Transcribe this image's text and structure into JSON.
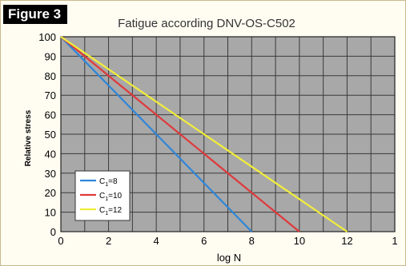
{
  "figure_label": "Figure 3",
  "chart_data": {
    "type": "line",
    "title": "Fatigue according DNV-OS-C502",
    "xlabel": "log N",
    "ylabel": "Relative stress",
    "xlim": [
      0,
      14
    ],
    "ylim": [
      0,
      100
    ],
    "xticks": [
      "0",
      "2",
      "4",
      "6",
      "8",
      "10",
      "12",
      "1"
    ],
    "yticks": [
      "0",
      "10",
      "20",
      "30",
      "40",
      "50",
      "60",
      "70",
      "80",
      "90",
      "100"
    ],
    "grid": true,
    "legend_position": "bottom-left",
    "plot_background": "#a8a8a8",
    "series": [
      {
        "name": "C1=8",
        "label_main": "C",
        "label_sub": "1",
        "label_tail": "=8",
        "color": "#2e86d8",
        "x": [
          0,
          8
        ],
        "y": [
          100,
          0
        ]
      },
      {
        "name": "C1=10",
        "label_main": "C",
        "label_sub": "1",
        "label_tail": "=10",
        "color": "#e0393b",
        "x": [
          0,
          10
        ],
        "y": [
          100,
          0
        ]
      },
      {
        "name": "C1=12",
        "label_main": "C",
        "label_sub": "1",
        "label_tail": "=12",
        "color": "#f2ee3a",
        "x": [
          0,
          12
        ],
        "y": [
          100,
          0
        ]
      }
    ]
  }
}
